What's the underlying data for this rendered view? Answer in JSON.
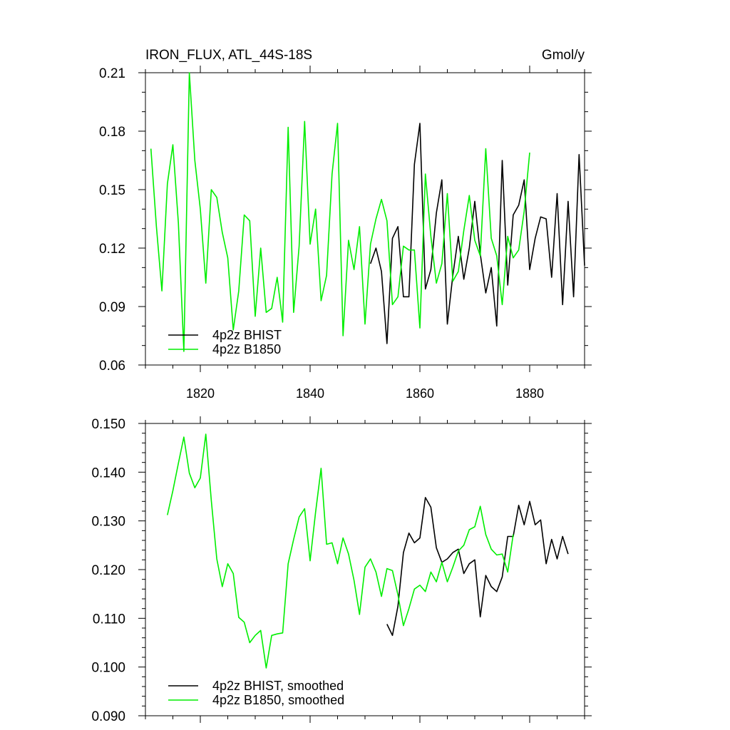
{
  "chart_data": [
    {
      "type": "line",
      "title": "IRON_FLUX, ATL_44S-18S",
      "units": "Gmol/y",
      "xlim": [
        1810,
        1890
      ],
      "ylim": [
        0.06,
        0.21
      ],
      "yticks": [
        "0.06",
        "0.09",
        "0.12",
        "0.15",
        "0.18",
        "0.21"
      ],
      "xticks": [
        "1820",
        "1840",
        "1860",
        "1880"
      ],
      "grid": false,
      "legend_position": "bottom-left",
      "series": [
        {
          "name": "4p2z BHIST",
          "color": "#000000",
          "x": [
            1851,
            1852,
            1853,
            1854,
            1855,
            1856,
            1857,
            1858,
            1859,
            1860,
            1861,
            1862,
            1863,
            1864,
            1865,
            1866,
            1867,
            1868,
            1869,
            1870,
            1871,
            1872,
            1873,
            1874,
            1875,
            1876,
            1877,
            1878,
            1879,
            1880,
            1881,
            1882,
            1883,
            1884,
            1885,
            1886,
            1887,
            1888,
            1889,
            1890
          ],
          "y": [
            0.112,
            0.12,
            0.108,
            0.071,
            0.125,
            0.131,
            0.095,
            0.095,
            0.163,
            0.184,
            0.099,
            0.109,
            0.138,
            0.155,
            0.081,
            0.106,
            0.126,
            0.104,
            0.12,
            0.144,
            0.117,
            0.097,
            0.11,
            0.08,
            0.165,
            0.101,
            0.137,
            0.142,
            0.155,
            0.109,
            0.125,
            0.136,
            0.135,
            0.105,
            0.148,
            0.091,
            0.144,
            0.095,
            0.168,
            0.111
          ]
        },
        {
          "name": "4p2z B1850",
          "color": "#00ee00",
          "x": [
            1811,
            1812,
            1813,
            1814,
            1815,
            1816,
            1817,
            1818,
            1819,
            1820,
            1821,
            1822,
            1823,
            1824,
            1825,
            1826,
            1827,
            1828,
            1829,
            1830,
            1831,
            1832,
            1833,
            1834,
            1835,
            1836,
            1837,
            1838,
            1839,
            1840,
            1841,
            1842,
            1843,
            1844,
            1845,
            1846,
            1847,
            1848,
            1849,
            1850,
            1851,
            1852,
            1853,
            1854,
            1855,
            1856,
            1857,
            1858,
            1859,
            1860,
            1861,
            1862,
            1863,
            1864,
            1865,
            1866,
            1867,
            1868,
            1869,
            1870,
            1871,
            1872,
            1873,
            1874,
            1875,
            1876,
            1877,
            1878,
            1879,
            1880
          ],
          "y": [
            0.171,
            0.131,
            0.098,
            0.153,
            0.173,
            0.133,
            0.067,
            0.21,
            0.165,
            0.14,
            0.102,
            0.15,
            0.146,
            0.128,
            0.115,
            0.078,
            0.098,
            0.137,
            0.134,
            0.085,
            0.12,
            0.087,
            0.089,
            0.105,
            0.082,
            0.182,
            0.087,
            0.121,
            0.185,
            0.122,
            0.14,
            0.093,
            0.106,
            0.158,
            0.184,
            0.075,
            0.124,
            0.109,
            0.131,
            0.081,
            0.122,
            0.135,
            0.145,
            0.134,
            0.091,
            0.095,
            0.121,
            0.119,
            0.119,
            0.079,
            0.158,
            0.126,
            0.102,
            0.112,
            0.148,
            0.103,
            0.108,
            0.129,
            0.147,
            0.124,
            0.116,
            0.171,
            0.125,
            0.116,
            0.091,
            0.126,
            0.115,
            0.119,
            0.139,
            0.169
          ]
        }
      ]
    },
    {
      "type": "line",
      "xlim": [
        1810,
        1890
      ],
      "ylim": [
        0.09,
        0.15
      ],
      "yticks": [
        "0.090",
        "0.100",
        "0.110",
        "0.120",
        "0.130",
        "0.140",
        "0.150"
      ],
      "xtick_values": [
        1820,
        1840,
        1860,
        1880
      ],
      "grid": false,
      "legend_position": "bottom-left",
      "series": [
        {
          "name": "4p2z BHIST, smoothed",
          "color": "#000000",
          "x": [
            1854,
            1855,
            1856,
            1857,
            1858,
            1859,
            1860,
            1861,
            1862,
            1863,
            1864,
            1865,
            1866,
            1867,
            1868,
            1869,
            1870,
            1871,
            1872,
            1873,
            1874,
            1875,
            1876,
            1877,
            1878,
            1879,
            1880,
            1881,
            1882,
            1883,
            1884,
            1885,
            1886,
            1887
          ],
          "y": [
            0.1088,
            0.1065,
            0.1125,
            0.1235,
            0.1275,
            0.1255,
            0.1265,
            0.1348,
            0.1328,
            0.1245,
            0.1215,
            0.1222,
            0.1235,
            0.1242,
            0.1192,
            0.1212,
            0.122,
            0.1103,
            0.1188,
            0.1165,
            0.1155,
            0.1185,
            0.1268,
            0.1268,
            0.1332,
            0.1292,
            0.134,
            0.1292,
            0.1302,
            0.1212,
            0.1262,
            0.1222,
            0.1268,
            0.1232
          ]
        },
        {
          "name": "4p2z B1850, smoothed",
          "color": "#00ee00",
          "x": [
            1814,
            1815,
            1816,
            1817,
            1818,
            1819,
            1820,
            1821,
            1822,
            1823,
            1824,
            1825,
            1826,
            1827,
            1828,
            1829,
            1830,
            1831,
            1832,
            1833,
            1834,
            1835,
            1836,
            1837,
            1838,
            1839,
            1840,
            1841,
            1842,
            1843,
            1844,
            1845,
            1846,
            1847,
            1848,
            1849,
            1850,
            1851,
            1852,
            1853,
            1854,
            1855,
            1856,
            1857,
            1858,
            1859,
            1860,
            1861,
            1862,
            1863,
            1864,
            1865,
            1866,
            1867,
            1868,
            1869,
            1870,
            1871,
            1872,
            1873,
            1874,
            1875,
            1876,
            1877
          ],
          "y": [
            0.1312,
            0.1362,
            0.1418,
            0.1472,
            0.1398,
            0.1368,
            0.1388,
            0.1478,
            0.1342,
            0.1222,
            0.1165,
            0.1212,
            0.1192,
            0.1102,
            0.1092,
            0.105,
            0.1065,
            0.1075,
            0.0998,
            0.1065,
            0.1068,
            0.107,
            0.1212,
            0.1262,
            0.1308,
            0.1325,
            0.1218,
            0.1318,
            0.1408,
            0.1252,
            0.1255,
            0.1212,
            0.1265,
            0.1232,
            0.1178,
            0.1108,
            0.1205,
            0.1222,
            0.1195,
            0.1145,
            0.1202,
            0.1198,
            0.1148,
            0.1085,
            0.112,
            0.116,
            0.1168,
            0.1155,
            0.1195,
            0.1175,
            0.1215,
            0.1175,
            0.1205,
            0.1238,
            0.125,
            0.1282,
            0.1288,
            0.133,
            0.1272,
            0.1242,
            0.123,
            0.1232,
            0.1195,
            0.1272
          ]
        }
      ]
    }
  ]
}
